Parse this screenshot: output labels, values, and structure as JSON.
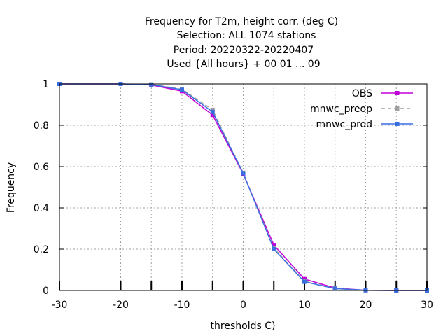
{
  "chart_data": {
    "type": "line",
    "title_lines": [
      "Frequency  for T2m, height corr. (deg C)",
      "Selection: ALL    1074 stations",
      "Period: 20220322-20220407",
      "Used {All hours} + 00 01 ... 09"
    ],
    "xlabel": "thresholds C)",
    "ylabel": "Frequency",
    "xlim": [
      -30,
      30
    ],
    "ylim": [
      0,
      1
    ],
    "x_ticks": [
      -30,
      -20,
      -10,
      0,
      10,
      20,
      30
    ],
    "y_ticks": [
      0,
      0.2,
      0.4,
      0.6,
      0.8,
      1
    ],
    "grid": true,
    "legend_position": "top-right",
    "x": [
      -30,
      -20,
      -15,
      -10,
      -5,
      0,
      5,
      10,
      15,
      20,
      25,
      30
    ],
    "series": [
      {
        "name": "OBS",
        "color": "#c000d8",
        "dashed": false,
        "values": [
          1.0,
          1.0,
          0.995,
          0.965,
          0.85,
          0.565,
          0.22,
          0.055,
          0.012,
          0.001,
          0.0,
          0.0
        ]
      },
      {
        "name": "mnwc_preop",
        "color": "#a0a0a0",
        "dashed": true,
        "values": [
          1.0,
          1.0,
          0.998,
          0.975,
          0.875,
          0.57,
          0.205,
          0.045,
          0.01,
          0.001,
          0.0,
          0.0
        ]
      },
      {
        "name": "mnwc_prod",
        "color": "#3a6fe0",
        "dashed": false,
        "values": [
          1.0,
          1.0,
          0.997,
          0.972,
          0.865,
          0.568,
          0.2,
          0.042,
          0.009,
          0.001,
          0.0,
          0.0
        ]
      }
    ]
  }
}
